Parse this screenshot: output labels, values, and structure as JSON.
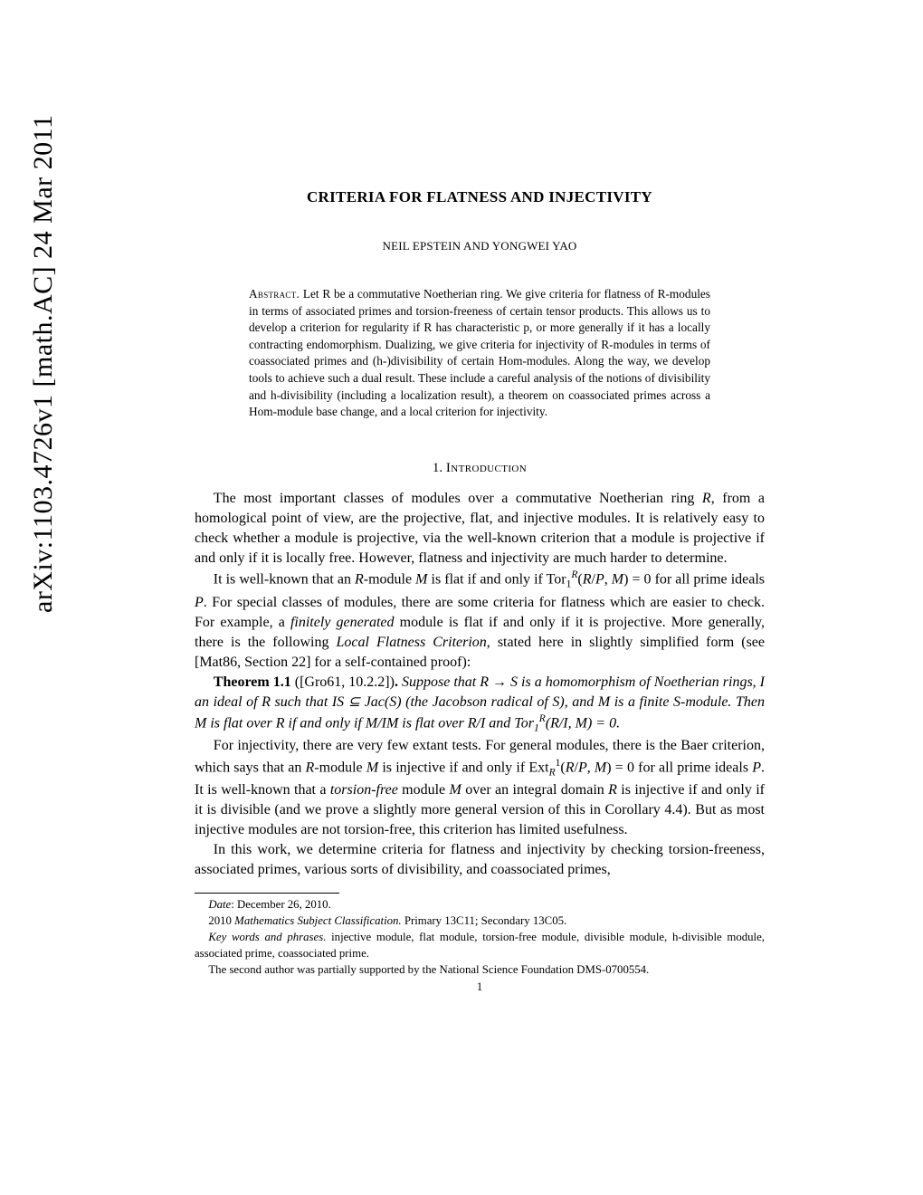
{
  "arxiv_stamp": "arXiv:1103.4726v1  [math.AC]  24 Mar 2011",
  "title": "CRITERIA FOR FLATNESS AND INJECTIVITY",
  "authors": "NEIL EPSTEIN AND YONGWEI YAO",
  "abstract_label": "Abstract.",
  "abstract": " Let R be a commutative Noetherian ring. We give criteria for flatness of R-modules in terms of associated primes and torsion-freeness of certain tensor products. This allows us to develop a criterion for regularity if R has characteristic p, or more generally if it has a locally contracting endomorphism. Dualizing, we give criteria for injectivity of R-modules in terms of coassociated primes and (h-)divisibility of certain Hom-modules. Along the way, we develop tools to achieve such a dual result. These include a careful analysis of the notions of divisibility and h-divisibility (including a localization result), a theorem on coassociated primes across a Hom-module base change, and a local criterion for injectivity.",
  "section": {
    "num": "1.",
    "name": "Introduction"
  },
  "theorem_label": "Theorem 1.1",
  "theorem_cite": " ([Gro61, 10.2.2])",
  "footnotes": {
    "date_label": "Date",
    "date_text": ": December 26, 2010.",
    "msc_label": "2010 Mathematics Subject Classification.",
    "msc_text": " Primary 13C11; Secondary 13C05.",
    "kw_label": "Key words and phrases.",
    "kw_text": " injective module, flat module, torsion-free module, divisible module, h-divisible module, associated prime, coassociated prime.",
    "support": "The second author was partially supported by the National Science Foundation DMS-0700554."
  },
  "page_number": "1"
}
